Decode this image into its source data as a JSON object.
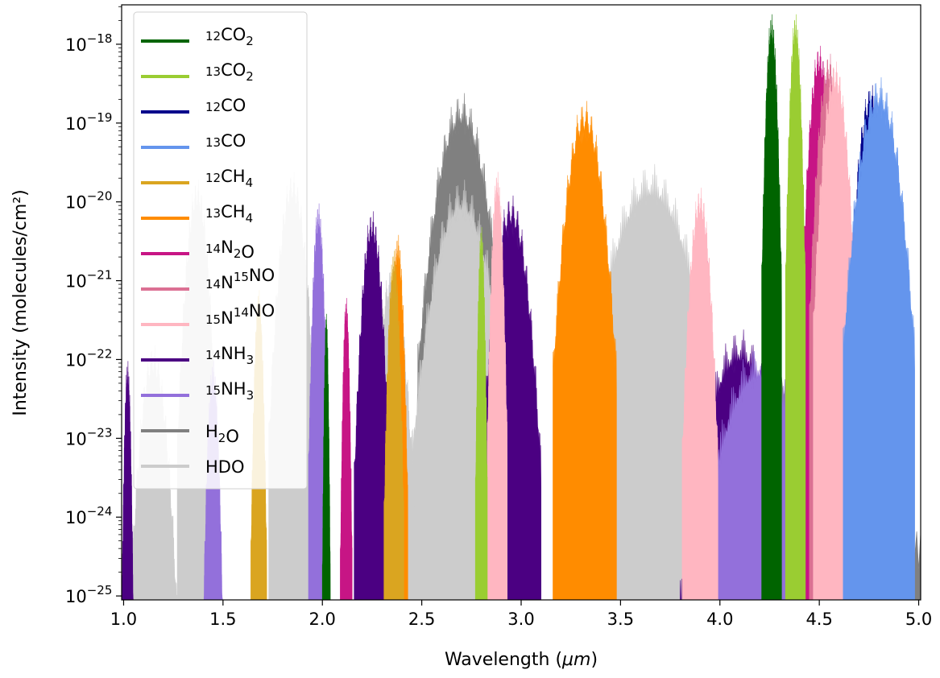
{
  "chart_data": {
    "type": "area",
    "xlabel_prefix": "Wavelength (",
    "xlabel_unit": "μm",
    "xlabel_suffix": ")",
    "ylabel": "Intensity (molecules/cm²)",
    "xlim": [
      0.99,
      5.01
    ],
    "ylim_log10": [
      -25.05,
      -17.5
    ],
    "yscale": "log",
    "grid": false,
    "legend_position": "upper-left",
    "x_ticks": [
      "1.0",
      "1.5",
      "2.0",
      "2.5",
      "3.0",
      "3.5",
      "4.0",
      "4.5",
      "5.0"
    ],
    "y_ticks": [
      {
        "base": "10",
        "exp": "−18",
        "value": -18
      },
      {
        "base": "10",
        "exp": "−19",
        "value": -19
      },
      {
        "base": "10",
        "exp": "−20",
        "value": -20
      },
      {
        "base": "10",
        "exp": "−21",
        "value": -21
      },
      {
        "base": "10",
        "exp": "−22",
        "value": -22
      },
      {
        "base": "10",
        "exp": "−23",
        "value": -23
      },
      {
        "base": "10",
        "exp": "−24",
        "value": -24
      },
      {
        "base": "10",
        "exp": "−25",
        "value": -25
      }
    ],
    "series": [
      {
        "name": "H2O",
        "sup": "",
        "main": "H",
        "sub": "2",
        "tail": "O",
        "color": "#808080",
        "bands": [
          {
            "center": 2.7,
            "half_width": 0.22,
            "peak_log10": -18.6
          },
          {
            "center": 1.87,
            "half_width": 0.1,
            "peak_log10": -20.6
          },
          {
            "center": 1.38,
            "half_width": 0.09,
            "peak_log10": -20.5
          },
          {
            "center": 4.35,
            "half_width": 0.8,
            "peak_log10": -22.0
          }
        ]
      },
      {
        "name": "HDO",
        "sup": "",
        "main": "HDO",
        "sub": "",
        "tail": "",
        "color": "#cccccc",
        "bands": [
          {
            "center": 2.7,
            "half_width": 0.25,
            "peak_log10": -19.7
          },
          {
            "center": 3.65,
            "half_width": 0.35,
            "peak_log10": -19.5
          },
          {
            "center": 1.85,
            "half_width": 0.12,
            "peak_log10": -19.6
          },
          {
            "center": 1.37,
            "half_width": 0.1,
            "peak_log10": -19.7
          },
          {
            "center": 2.35,
            "half_width": 0.12,
            "peak_log10": -20.8
          },
          {
            "center": 1.15,
            "half_width": 0.12,
            "peak_log10": -21.8
          },
          {
            "center": 4.4,
            "half_width": 0.55,
            "peak_log10": -22.6
          }
        ]
      },
      {
        "name": "14NH3",
        "sup": "14",
        "main": "NH",
        "sub": "3",
        "tail": "",
        "color": "#4b0082",
        "bands": [
          {
            "center": 2.25,
            "half_width": 0.09,
            "peak_log10": -20.1
          },
          {
            "center": 2.95,
            "half_width": 0.15,
            "peak_log10": -19.9
          },
          {
            "center": 1.02,
            "half_width": 0.03,
            "peak_log10": -22.0
          },
          {
            "center": 4.1,
            "half_width": 0.3,
            "peak_log10": -21.6
          }
        ]
      },
      {
        "name": "15NH3",
        "sup": "15",
        "main": "NH",
        "sub": "3",
        "tail": "",
        "color": "#9370db",
        "bands": [
          {
            "center": 1.98,
            "half_width": 0.05,
            "peak_log10": -20.0
          },
          {
            "center": 4.2,
            "half_width": 0.35,
            "peak_log10": -21.8
          },
          {
            "center": 1.45,
            "half_width": 0.05,
            "peak_log10": -22.0
          }
        ]
      },
      {
        "name": "14N2O",
        "sup": "14",
        "main": "N",
        "sub": "2",
        "tail": "O",
        "color": "#c71585",
        "bands": [
          {
            "center": 4.5,
            "half_width": 0.09,
            "peak_log10": -18.0
          },
          {
            "center": 3.92,
            "half_width": 0.05,
            "peak_log10": -20.3
          },
          {
            "center": 2.12,
            "half_width": 0.03,
            "peak_log10": -21.2
          }
        ]
      },
      {
        "name": "14N15NO",
        "sup": "14",
        "main": "N",
        "sup2": "15",
        "tail": "NO",
        "color": "#db7093",
        "bands": [
          {
            "center": 4.55,
            "half_width": 0.1,
            "peak_log10": -18.1
          }
        ]
      },
      {
        "name": "15N14NO",
        "sup": "15",
        "main": "N",
        "sup2": "14",
        "tail": "NO",
        "color": "#ffb6c1",
        "bands": [
          {
            "center": 4.58,
            "half_width": 0.11,
            "peak_log10": -18.2
          },
          {
            "center": 2.88,
            "half_width": 0.05,
            "peak_log10": -19.6
          },
          {
            "center": 3.9,
            "half_width": 0.09,
            "peak_log10": -19.8
          }
        ]
      },
      {
        "name": "13CH4",
        "sup": "13",
        "main": "CH",
        "sub": "4",
        "tail": "",
        "color": "#ff8c00",
        "bands": [
          {
            "center": 3.32,
            "half_width": 0.16,
            "peak_log10": -18.7
          },
          {
            "center": 2.38,
            "half_width": 0.05,
            "peak_log10": -20.4
          }
        ]
      },
      {
        "name": "12CH4",
        "sup": "12",
        "main": "CH",
        "sub": "4",
        "tail": "",
        "color": "#daa520",
        "bands": [
          {
            "center": 1.68,
            "half_width": 0.04,
            "peak_log10": -21.1
          },
          {
            "center": 2.36,
            "half_width": 0.05,
            "peak_log10": -20.6
          }
        ]
      },
      {
        "name": "12CO",
        "sup": "12",
        "main": "CO",
        "sub": "",
        "tail": "",
        "color": "#00008b",
        "bands": [
          {
            "center": 4.76,
            "half_width": 0.12,
            "peak_log10": -18.5
          }
        ]
      },
      {
        "name": "13CO",
        "sup": "13",
        "main": "CO",
        "sub": "",
        "tail": "",
        "color": "#6495ed",
        "bands": [
          {
            "center": 4.8,
            "half_width": 0.18,
            "peak_log10": -18.4
          }
        ]
      },
      {
        "name": "13CO2",
        "sup": "13",
        "main": "CO",
        "sub": "2",
        "tail": "",
        "color": "#9acd32",
        "bands": [
          {
            "center": 4.38,
            "half_width": 0.05,
            "peak_log10": -17.6
          },
          {
            "center": 2.8,
            "half_width": 0.03,
            "peak_log10": -20.3
          }
        ]
      },
      {
        "name": "12CO2",
        "sup": "12",
        "main": "CO",
        "sub": "2",
        "tail": "",
        "color": "#006400",
        "bands": [
          {
            "center": 4.26,
            "half_width": 0.05,
            "peak_log10": -17.6
          },
          {
            "center": 2.02,
            "half_width": 0.02,
            "peak_log10": -21.4
          }
        ]
      }
    ],
    "legend_order": [
      "12CO2",
      "13CO2",
      "12CO",
      "13CO",
      "12CH4",
      "13CH4",
      "14N2O",
      "14N15NO",
      "15N14NO",
      "14NH3",
      "15NH3",
      "H2O",
      "HDO"
    ]
  }
}
